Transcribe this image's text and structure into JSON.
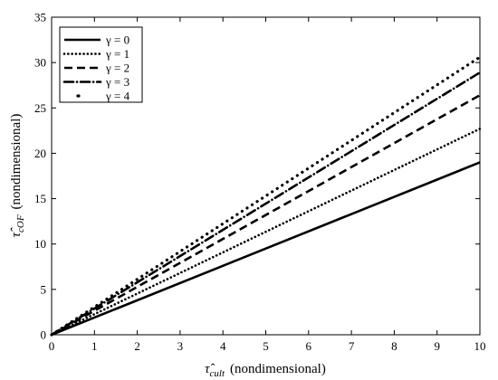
{
  "chart_data": {
    "type": "line",
    "x": [
      0,
      10
    ],
    "xlim": [
      0,
      10
    ],
    "ylim": [
      0,
      35
    ],
    "xticks": [
      "0",
      "1",
      "2",
      "3",
      "4",
      "5",
      "6",
      "7",
      "8",
      "9",
      "10"
    ],
    "yticks": [
      "0",
      "5",
      "10",
      "15",
      "20",
      "25",
      "30",
      "35"
    ],
    "xlabel_symbol": "τ̂",
    "xlabel_sub": "cult",
    "xlabel_text": "(nondimensional)",
    "ylabel_symbol": "τ̂",
    "ylabel_sub": "cOF",
    "ylabel_text": "(nondimensional)",
    "grid": false,
    "legend_position": "top-left",
    "series": [
      {
        "name": "γ = 0",
        "values": [
          0,
          19.0
        ],
        "style": "solid"
      },
      {
        "name": "γ = 1",
        "values": [
          0,
          22.7
        ],
        "style": "dotted"
      },
      {
        "name": "γ = 2",
        "values": [
          0,
          26.4
        ],
        "style": "dashed"
      },
      {
        "name": "γ = 3",
        "values": [
          0,
          28.9
        ],
        "style": "dashdot"
      },
      {
        "name": "γ = 4",
        "values": [
          0,
          30.6
        ],
        "style": "sparse-dot"
      }
    ]
  }
}
